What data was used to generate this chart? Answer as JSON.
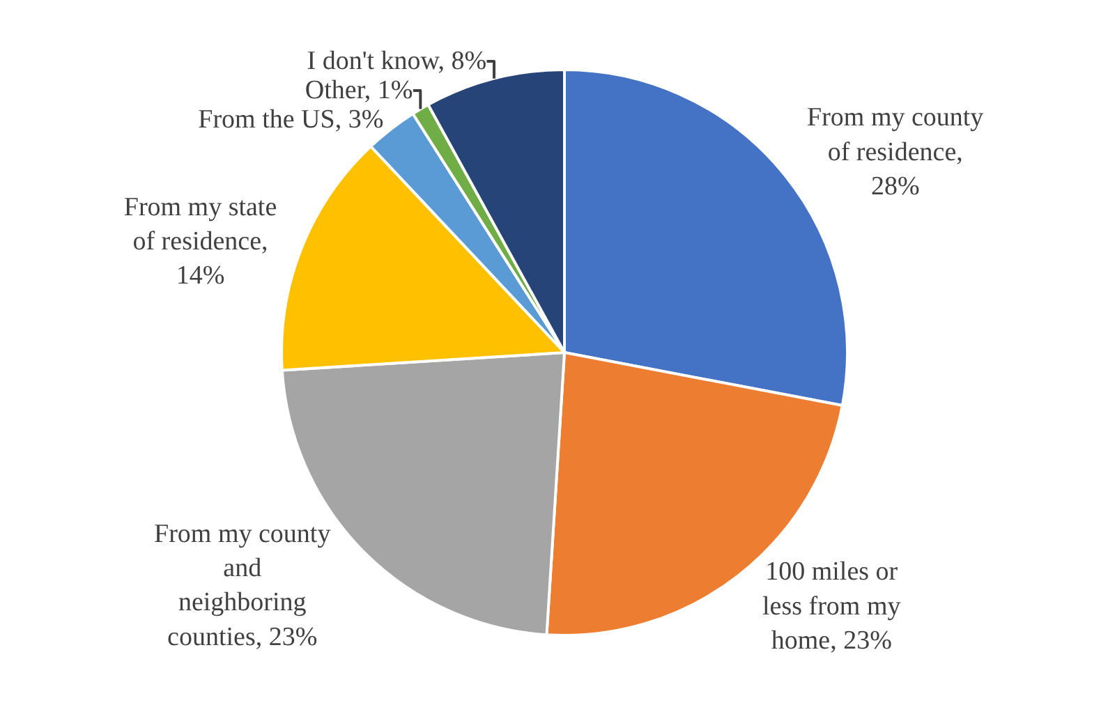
{
  "chart_data": {
    "type": "pie",
    "categories": [
      "From my county of residence, 28%",
      "100 miles or less from my home, 23%",
      "From my county and neighboring counties, 23%",
      "From my state of residence, 14%",
      "From the US, 3%",
      "Other, 1%",
      "I don't know, 8%"
    ],
    "values": [
      28,
      23,
      23,
      14,
      3,
      1,
      8
    ],
    "colors": [
      "#4472c4",
      "#ed7d31",
      "#a5a5a5",
      "#ffc000",
      "#5b9bd5",
      "#70ad47",
      "#264478"
    ],
    "legend": false
  }
}
